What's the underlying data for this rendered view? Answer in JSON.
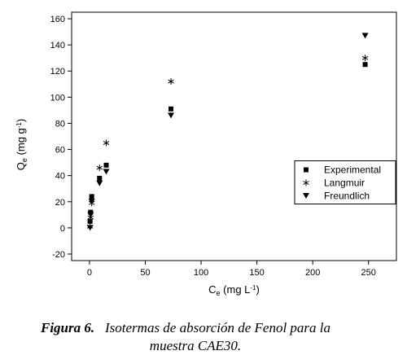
{
  "chart_data": {
    "type": "scatter",
    "xlabel": [
      "C",
      "e",
      " (mg L",
      "-1",
      ")"
    ],
    "ylabel": [
      "Q",
      "e",
      " (mg g",
      "-1",
      ")"
    ],
    "xlim": [
      -16,
      275
    ],
    "ylim": [
      -25,
      165
    ],
    "xticks": [
      0,
      50,
      100,
      150,
      200,
      250
    ],
    "yticks": [
      -20,
      0,
      20,
      40,
      60,
      80,
      100,
      120,
      140,
      160
    ],
    "legend": "center right",
    "series": [
      {
        "name": "Experimental",
        "color": "#000000",
        "marker": "square",
        "x": [
          0.5,
          1,
          2,
          9,
          15,
          73,
          247
        ],
        "values": [
          5,
          12,
          24,
          38,
          48,
          91,
          125
        ]
      },
      {
        "name": "Langmuir",
        "color": "#000000",
        "marker": "star",
        "x": [
          0.5,
          1,
          2,
          9,
          15,
          73,
          247
        ],
        "values": [
          1,
          8,
          19,
          46,
          65,
          112,
          130
        ]
      },
      {
        "name": "Freundlich",
        "color": "#000000",
        "marker": "triangle-down",
        "x": [
          0.5,
          1,
          2,
          9,
          15,
          73,
          247
        ],
        "values": [
          0,
          10,
          20,
          34,
          43,
          86,
          147
        ]
      }
    ]
  },
  "caption": {
    "label": "Figura 6.",
    "text_line1": "Isotermas de absorción de Fenol para la",
    "text_line2": "muestra CAE30."
  }
}
